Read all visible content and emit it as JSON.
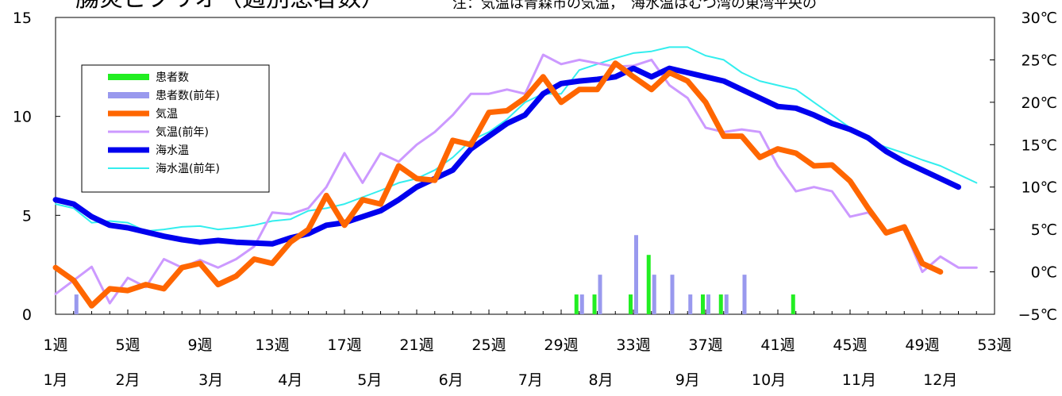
{
  "chart_data": {
    "type": "bar+line",
    "title": "腸炎ビブリオ（週別患者数）",
    "note": "注：気温は青森市の気温，　海水温はむつ湾の東湾平央の",
    "x": {
      "min": 1,
      "max": 53,
      "tick_values": [
        1,
        5,
        9,
        13,
        17,
        21,
        25,
        29,
        33,
        37,
        41,
        45,
        49,
        53
      ],
      "tick_labels": [
        "1週",
        "5週",
        "9週",
        "13週",
        "17週",
        "21週",
        "25週",
        "29週",
        "33週",
        "37週",
        "41週",
        "45週",
        "49週",
        "53週"
      ]
    },
    "months": [
      {
        "label": "1月",
        "week": 1
      },
      {
        "label": "2月",
        "week": 5
      },
      {
        "label": "3月",
        "week": 9.6
      },
      {
        "label": "4月",
        "week": 14
      },
      {
        "label": "5月",
        "week": 18.4
      },
      {
        "label": "6月",
        "week": 22.9
      },
      {
        "label": "7月",
        "week": 27.3
      },
      {
        "label": "8月",
        "week": 31.2
      },
      {
        "label": "9月",
        "week": 36
      },
      {
        "label": "10月",
        "week": 40.5
      },
      {
        "label": "11月",
        "week": 45.5
      },
      {
        "label": "12月",
        "week": 50
      }
    ],
    "y_left": {
      "min": 0,
      "max": 15,
      "ticks": [
        0,
        5,
        10,
        15
      ],
      "labels": [
        "0",
        "5",
        "10",
        "15"
      ]
    },
    "y_right": {
      "min": -5,
      "max": 30,
      "ticks": [
        -5,
        0,
        5,
        10,
        15,
        20,
        25,
        30
      ],
      "labels": [
        "−5℃",
        "0℃",
        "5℃",
        "10℃",
        "15℃",
        "20℃",
        "25℃",
        "30℃"
      ]
    },
    "legend": {
      "position": "upper-left",
      "entries": [
        "患者数",
        "患者数(前年)",
        "気温",
        "気温(前年)",
        "海水温",
        "海水温(前年)"
      ]
    },
    "series": [
      {
        "name": "患者数",
        "kind": "bar",
        "axis": "left",
        "color": "#22ee22",
        "points": [
          [
            30,
            1
          ],
          [
            31,
            1
          ],
          [
            33,
            1
          ],
          [
            34,
            3
          ],
          [
            37,
            1
          ],
          [
            38,
            1
          ],
          [
            42,
            1
          ]
        ]
      },
      {
        "name": "患者数(前年)",
        "kind": "bar",
        "axis": "left",
        "color": "#9999ee",
        "points": [
          [
            2,
            1
          ],
          [
            30,
            1
          ],
          [
            31,
            2
          ],
          [
            33,
            4
          ],
          [
            34,
            2
          ],
          [
            35,
            2
          ],
          [
            36,
            1
          ],
          [
            37,
            1
          ],
          [
            38,
            1
          ],
          [
            39,
            2
          ]
        ]
      },
      {
        "name": "気温",
        "kind": "line",
        "axis": "right",
        "color": "#ff6600",
        "width": 7,
        "points": [
          [
            1,
            0.5
          ],
          [
            2,
            -1
          ],
          [
            3,
            -4
          ],
          [
            4,
            -2
          ],
          [
            5,
            -2.2
          ],
          [
            6,
            -1.5
          ],
          [
            7,
            -2
          ],
          [
            8,
            0.5
          ],
          [
            9,
            1
          ],
          [
            10,
            -1.5
          ],
          [
            11,
            -0.5
          ],
          [
            12,
            1.5
          ],
          [
            13,
            1
          ],
          [
            14,
            3.5
          ],
          [
            15,
            5
          ],
          [
            16,
            9
          ],
          [
            17,
            5.5
          ],
          [
            18,
            8.5
          ],
          [
            19,
            8
          ],
          [
            20,
            12.5
          ],
          [
            21,
            11
          ],
          [
            22,
            10.8
          ],
          [
            23,
            15.5
          ],
          [
            24,
            15
          ],
          [
            25,
            18.8
          ],
          [
            26,
            19
          ],
          [
            27,
            20.5
          ],
          [
            28,
            23
          ],
          [
            29,
            20
          ],
          [
            30,
            21.5
          ],
          [
            31,
            21.5
          ],
          [
            32,
            24.6
          ],
          [
            33,
            23
          ],
          [
            34,
            21.5
          ],
          [
            35,
            23.5
          ],
          [
            36,
            22.5
          ],
          [
            37,
            20
          ],
          [
            38,
            16
          ],
          [
            39,
            16
          ],
          [
            40,
            13.5
          ],
          [
            41,
            14.5
          ],
          [
            42,
            14
          ],
          [
            43,
            12.5
          ],
          [
            44,
            12.6
          ],
          [
            45,
            10.7
          ],
          [
            46,
            7.5
          ],
          [
            47,
            4.6
          ],
          [
            48,
            5.3
          ],
          [
            49,
            1
          ],
          [
            50,
            0
          ]
        ]
      },
      {
        "name": "気温(前年)",
        "kind": "line",
        "axis": "right",
        "color": "#cc99ff",
        "width": 3,
        "points": [
          [
            1,
            -2.6
          ],
          [
            2,
            -1
          ],
          [
            3,
            0.6
          ],
          [
            4,
            -3.7
          ],
          [
            5,
            -0.7
          ],
          [
            6,
            -1.8
          ],
          [
            7,
            1.5
          ],
          [
            8,
            0.5
          ],
          [
            9,
            1.4
          ],
          [
            10,
            0.5
          ],
          [
            11,
            1.5
          ],
          [
            12,
            3
          ],
          [
            13,
            7
          ],
          [
            14,
            6.8
          ],
          [
            15,
            7.5
          ],
          [
            16,
            10
          ],
          [
            17,
            14
          ],
          [
            18,
            10.5
          ],
          [
            19,
            14
          ],
          [
            20,
            13
          ],
          [
            21,
            15
          ],
          [
            22,
            16.5
          ],
          [
            23,
            18.5
          ],
          [
            24,
            21
          ],
          [
            25,
            21
          ],
          [
            26,
            21.5
          ],
          [
            27,
            21
          ],
          [
            28,
            25.6
          ],
          [
            29,
            24.5
          ],
          [
            30,
            25
          ],
          [
            31,
            24.6
          ],
          [
            32,
            24.2
          ],
          [
            33,
            24.3
          ],
          [
            34,
            25
          ],
          [
            35,
            22
          ],
          [
            36,
            20.5
          ],
          [
            37,
            17
          ],
          [
            38,
            16.5
          ],
          [
            39,
            16.8
          ],
          [
            40,
            16.5
          ],
          [
            41,
            12.5
          ],
          [
            42,
            9.5
          ],
          [
            43,
            10
          ],
          [
            44,
            9.5
          ],
          [
            45,
            6.5
          ],
          [
            46,
            7
          ],
          [
            47,
            4.8
          ],
          [
            48,
            5
          ],
          [
            49,
            0
          ],
          [
            50,
            1.8
          ],
          [
            51,
            0.5
          ],
          [
            52,
            0.5
          ]
        ]
      },
      {
        "name": "海水温",
        "kind": "line",
        "axis": "right",
        "color": "#0000ee",
        "width": 7,
        "points": [
          [
            1,
            8.5
          ],
          [
            2,
            8
          ],
          [
            3,
            6.5
          ],
          [
            4,
            5.5
          ],
          [
            5,
            5.2
          ],
          [
            6,
            4.7
          ],
          [
            7,
            4.2
          ],
          [
            8,
            3.8
          ],
          [
            9,
            3.5
          ],
          [
            10,
            3.7
          ],
          [
            11,
            3.5
          ],
          [
            12,
            3.4
          ],
          [
            13,
            3.3
          ],
          [
            14,
            4
          ],
          [
            15,
            4.5
          ],
          [
            16,
            5.5
          ],
          [
            17,
            5.8
          ],
          [
            18,
            6.5
          ],
          [
            19,
            7.2
          ],
          [
            20,
            8.5
          ],
          [
            21,
            10
          ],
          [
            22,
            11
          ],
          [
            23,
            12
          ],
          [
            24,
            14.5
          ],
          [
            25,
            16
          ],
          [
            26,
            17.5
          ],
          [
            27,
            18.5
          ],
          [
            28,
            21
          ],
          [
            29,
            22.2
          ],
          [
            30,
            22.5
          ],
          [
            31,
            22.7
          ],
          [
            32,
            23
          ],
          [
            33,
            24
          ],
          [
            34,
            23
          ],
          [
            35,
            24
          ],
          [
            36,
            23.5
          ],
          [
            37,
            23
          ],
          [
            38,
            22.5
          ],
          [
            39,
            21.5
          ],
          [
            40,
            20.5
          ],
          [
            41,
            19.5
          ],
          [
            42,
            19.3
          ],
          [
            43,
            18.5
          ],
          [
            44,
            17.5
          ],
          [
            45,
            16.8
          ],
          [
            46,
            15.8
          ],
          [
            47,
            14.2
          ],
          [
            48,
            13
          ],
          [
            49,
            12
          ],
          [
            50,
            11
          ],
          [
            51,
            10
          ]
        ]
      },
      {
        "name": "海水温(前年)",
        "kind": "line",
        "axis": "right",
        "color": "#33eeee",
        "width": 2,
        "points": [
          [
            1,
            8
          ],
          [
            2,
            7.5
          ],
          [
            3,
            5.8
          ],
          [
            4,
            6
          ],
          [
            5,
            5.8
          ],
          [
            6,
            4.8
          ],
          [
            7,
            5
          ],
          [
            8,
            5.3
          ],
          [
            9,
            5.4
          ],
          [
            10,
            5
          ],
          [
            11,
            5.2
          ],
          [
            12,
            5.5
          ],
          [
            13,
            6
          ],
          [
            14,
            6.2
          ],
          [
            15,
            7.2
          ],
          [
            16,
            7.5
          ],
          [
            17,
            8
          ],
          [
            18,
            8.8
          ],
          [
            19,
            9.6
          ],
          [
            20,
            10.5
          ],
          [
            21,
            11
          ],
          [
            22,
            12
          ],
          [
            23,
            13.5
          ],
          [
            24,
            15.5
          ],
          [
            25,
            16.5
          ],
          [
            26,
            18
          ],
          [
            27,
            20
          ],
          [
            28,
            21
          ],
          [
            29,
            21
          ],
          [
            30,
            23.8
          ],
          [
            31,
            24.5
          ],
          [
            32,
            25.2
          ],
          [
            33,
            25.8
          ],
          [
            34,
            26
          ],
          [
            35,
            26.5
          ],
          [
            36,
            26.5
          ],
          [
            37,
            25.5
          ],
          [
            38,
            25
          ],
          [
            39,
            23.5
          ],
          [
            40,
            22.5
          ],
          [
            41,
            22
          ],
          [
            42,
            21.5
          ],
          [
            43,
            20
          ],
          [
            44,
            18.5
          ],
          [
            45,
            17
          ],
          [
            46,
            15.5
          ],
          [
            47,
            14.7
          ],
          [
            48,
            14
          ],
          [
            49,
            13.2
          ],
          [
            50,
            12.5
          ],
          [
            51,
            11.5
          ],
          [
            52,
            10.5
          ]
        ]
      }
    ]
  }
}
